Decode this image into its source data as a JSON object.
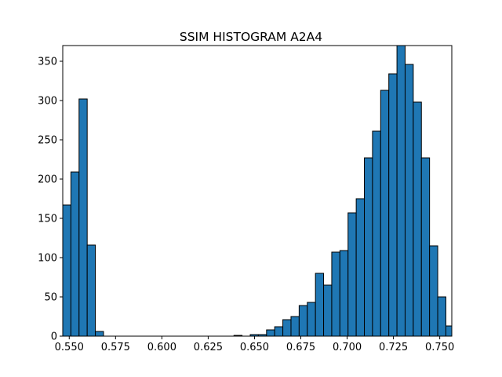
{
  "chart_data": {
    "type": "bar",
    "title": "SSIM HISTOGRAM A2A4",
    "xlabel": "",
    "ylabel": "",
    "xlim": [
      0.5465,
      0.7565
    ],
    "ylim": [
      0,
      370
    ],
    "bar_color": "#1f77b4",
    "edge_color": "#000000",
    "grid": false,
    "bin_edges": [
      0.5465,
      0.5509,
      0.5553,
      0.5597,
      0.5641,
      0.5685,
      0.5729,
      0.5773,
      0.5817,
      0.5861,
      0.5905,
      0.5949,
      0.5993,
      0.6037,
      0.6081,
      0.6125,
      0.6169,
      0.6213,
      0.6257,
      0.6301,
      0.6345,
      0.6389,
      0.6433,
      0.6477,
      0.6521,
      0.6565,
      0.6609,
      0.6653,
      0.6697,
      0.6741,
      0.6785,
      0.6829,
      0.6873,
      0.6917,
      0.6961,
      0.7005,
      0.7049,
      0.7093,
      0.7137,
      0.7181,
      0.7225,
      0.7269,
      0.7313,
      0.7357,
      0.7401,
      0.7445,
      0.7489,
      0.7533,
      0.7565
    ],
    "counts": [
      167,
      209,
      302,
      116,
      6,
      0,
      0,
      0,
      0,
      0,
      0,
      0,
      0,
      0,
      0,
      0,
      0,
      0,
      0,
      0,
      0,
      1,
      0,
      2,
      2,
      8,
      12,
      21,
      25,
      39,
      43,
      80,
      65,
      107,
      109,
      157,
      175,
      227,
      261,
      313,
      334,
      371,
      346,
      298,
      227,
      115,
      50,
      13
    ],
    "x_ticks": [
      0.55,
      0.575,
      0.6,
      0.625,
      0.65,
      0.675,
      0.7,
      0.725,
      0.75
    ],
    "x_tick_labels": [
      "0.550",
      "0.575",
      "0.600",
      "0.625",
      "0.650",
      "0.675",
      "0.700",
      "0.725",
      "0.750"
    ],
    "y_ticks": [
      0,
      50,
      100,
      150,
      200,
      250,
      300,
      350
    ],
    "y_tick_labels": [
      "0",
      "50",
      "100",
      "150",
      "200",
      "250",
      "300",
      "350"
    ]
  }
}
